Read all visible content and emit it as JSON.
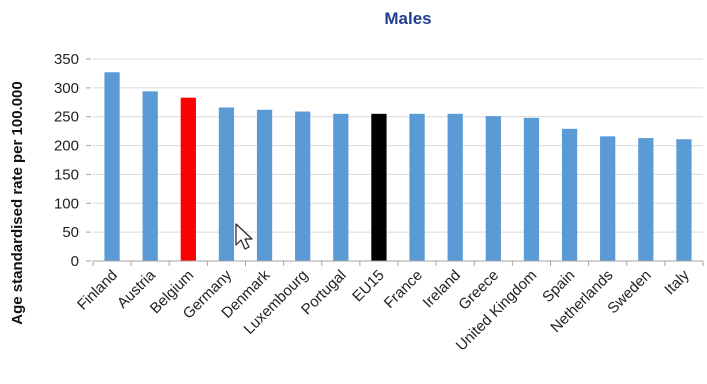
{
  "chart_data": {
    "type": "bar",
    "title": "Males",
    "xlabel": "",
    "ylabel": "Age standardised rate per 100.000",
    "ylim": [
      0,
      350
    ],
    "yticks": [
      0,
      50,
      100,
      150,
      200,
      250,
      300,
      350
    ],
    "grid": true,
    "categories": [
      "Finland",
      "Austria",
      "Belgium",
      "Germany",
      "Denmark",
      "Luxembourg",
      "Portugal",
      "EU15",
      "France",
      "Ireland",
      "Greece",
      "United Kingdom",
      "Spain",
      "Netherlands",
      "Sweden",
      "Italy"
    ],
    "values": [
      327,
      294,
      283,
      266,
      262,
      259,
      255,
      255,
      255,
      255,
      251,
      248,
      229,
      216,
      213,
      211
    ],
    "colors": {
      "default": "#5b9bd5",
      "Belgium": "#ff0000",
      "EU15": "#000000"
    }
  }
}
